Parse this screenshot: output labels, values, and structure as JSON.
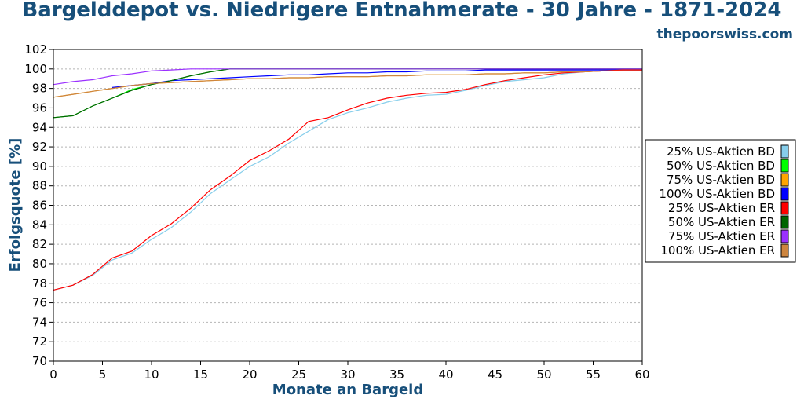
{
  "header": {
    "title": "Bargelddepot vs. Niedrigere Entnahmerate - 30 Jahre - 1871-2024",
    "source": "thepoorswiss.com"
  },
  "chart_data": {
    "type": "line",
    "title": "Bargelddepot vs. Niedrigere Entnahmerate - 30 Jahre - 1871-2024",
    "xlabel": "Monate an Bargeld",
    "ylabel": "Erfolgsquote [%]",
    "xlim": [
      0,
      60
    ],
    "ylim": [
      70,
      102
    ],
    "xticks": [
      0,
      5,
      10,
      15,
      20,
      25,
      30,
      35,
      40,
      45,
      50,
      55,
      60
    ],
    "yticks": [
      70,
      72,
      74,
      76,
      78,
      80,
      82,
      84,
      86,
      88,
      90,
      92,
      94,
      96,
      98,
      100,
      102
    ],
    "grid": "horizontal dotted",
    "legend_position": "right",
    "x": [
      0,
      2,
      4,
      6,
      8,
      10,
      12,
      14,
      16,
      18,
      20,
      22,
      24,
      26,
      28,
      30,
      32,
      34,
      36,
      38,
      40,
      42,
      44,
      46,
      48,
      50,
      52,
      54,
      56,
      58,
      60
    ],
    "series": [
      {
        "name": "25% US-Aktien BD",
        "color": "#87ceeb",
        "values": [
          77.3,
          77.8,
          78.8,
          80.4,
          81.1,
          82.5,
          83.7,
          85.3,
          87.2,
          88.6,
          90.0,
          91.0,
          92.4,
          93.6,
          94.8,
          95.5,
          96.0,
          96.6,
          97.0,
          97.3,
          97.4,
          97.8,
          98.3,
          98.7,
          98.9,
          99.1,
          99.5,
          99.7,
          99.8,
          99.9,
          99.9
        ]
      },
      {
        "name": "50% US-Aktien BD",
        "color": "#00ff00",
        "values": [
          95.0,
          95.2,
          96.2,
          97.0,
          97.9,
          98.4,
          98.8,
          99.3,
          99.7,
          100.0,
          100.0,
          100.0,
          100.0,
          100.0,
          100.0,
          100.0,
          100.0,
          100.0,
          100.0,
          100.0,
          100.0,
          100.0,
          100.0,
          100.0,
          100.0,
          100.0,
          100.0,
          100.0,
          100.0,
          100.0,
          100.0
        ]
      },
      {
        "name": "75% US-Aktien BD",
        "color": "#ffa500",
        "values": [
          97.1,
          97.4,
          97.7,
          98.0,
          98.3,
          98.5,
          98.6,
          98.7,
          98.8,
          98.9,
          99.0,
          99.0,
          99.1,
          99.1,
          99.2,
          99.2,
          99.2,
          99.3,
          99.3,
          99.4,
          99.4,
          99.4,
          99.5,
          99.5,
          99.6,
          99.6,
          99.7,
          99.7,
          99.8,
          99.8,
          99.8
        ]
      },
      {
        "name": "100% US-Aktien BD",
        "color": "#0000ff",
        "values": [
          null,
          null,
          null,
          98.1,
          98.3,
          98.5,
          98.8,
          98.9,
          99.0,
          99.1,
          99.2,
          99.3,
          99.4,
          99.4,
          99.5,
          99.6,
          99.6,
          99.7,
          99.7,
          99.8,
          99.8,
          99.8,
          99.9,
          99.9,
          99.9,
          99.9,
          99.9,
          99.9,
          99.9,
          99.9,
          99.9
        ]
      },
      {
        "name": "25% US-Aktien ER",
        "color": "#ff0000",
        "values": [
          77.3,
          77.8,
          78.9,
          80.6,
          81.3,
          82.9,
          84.1,
          85.7,
          87.6,
          89.0,
          90.6,
          91.6,
          92.8,
          94.6,
          95.0,
          95.8,
          96.5,
          97.0,
          97.3,
          97.5,
          97.6,
          97.9,
          98.4,
          98.8,
          99.1,
          99.4,
          99.6,
          99.7,
          99.8,
          99.9,
          99.9
        ]
      },
      {
        "name": "50% US-Aktien ER",
        "color": "#006400",
        "values": [
          95.0,
          95.2,
          96.2,
          97.0,
          97.8,
          98.4,
          98.8,
          99.3,
          99.7,
          100.0,
          100.0,
          100.0,
          100.0,
          100.0,
          100.0,
          100.0,
          100.0,
          100.0,
          100.0,
          100.0,
          100.0,
          100.0,
          100.0,
          100.0,
          100.0,
          100.0,
          100.0,
          100.0,
          100.0,
          100.0,
          100.0
        ]
      },
      {
        "name": "75% US-Aktien ER",
        "color": "#9b30ff",
        "values": [
          98.4,
          98.7,
          98.9,
          99.3,
          99.5,
          99.8,
          99.9,
          100.0,
          100.0,
          100.0,
          100.0,
          100.0,
          100.0,
          100.0,
          100.0,
          100.0,
          100.0,
          100.0,
          100.0,
          100.0,
          100.0,
          100.0,
          100.0,
          100.0,
          100.0,
          100.0,
          100.0,
          100.0,
          100.0,
          100.0,
          100.0
        ]
      },
      {
        "name": "100% US-Aktien ER",
        "color": "#cd853f",
        "values": [
          97.1,
          97.4,
          97.7,
          98.0,
          98.3,
          98.5,
          98.6,
          98.7,
          98.8,
          98.9,
          99.0,
          99.0,
          99.1,
          99.1,
          99.2,
          99.2,
          99.2,
          99.3,
          99.3,
          99.4,
          99.4,
          99.4,
          99.5,
          99.5,
          99.6,
          99.6,
          99.7,
          99.7,
          99.8,
          99.8,
          99.8
        ]
      }
    ]
  }
}
